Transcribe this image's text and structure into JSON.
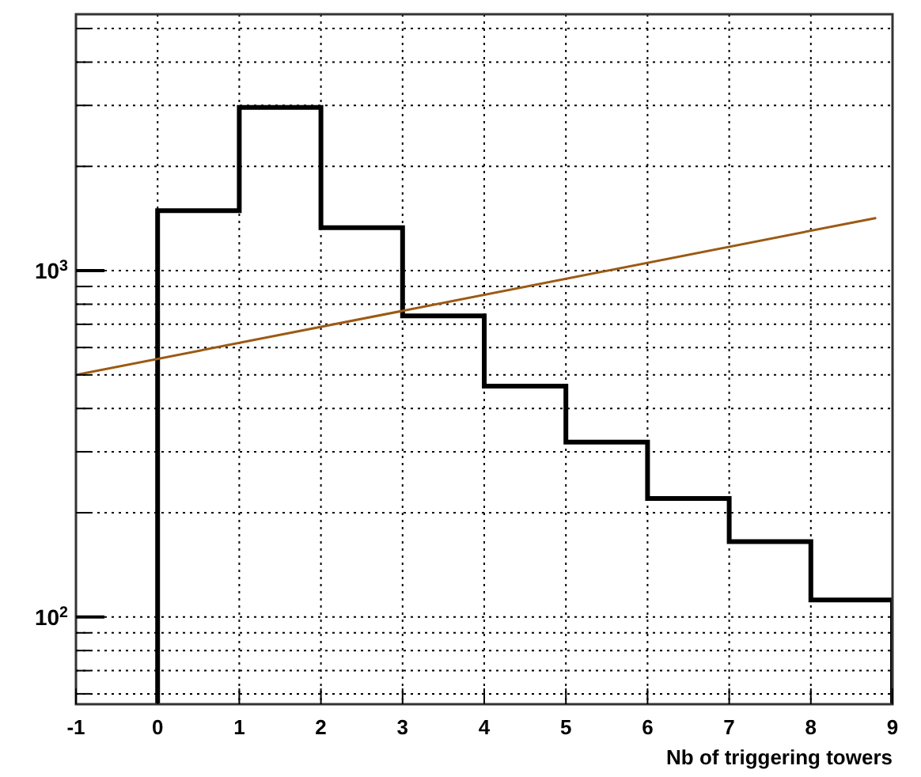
{
  "chart_data": {
    "type": "histogram",
    "xlabel": "Nb of triggering towers",
    "log": "y",
    "grid": true,
    "bins": [
      0,
      1,
      2,
      3,
      4,
      5,
      6,
      7,
      8,
      9
    ],
    "series": [
      {
        "color": "#000000",
        "values": [
          1490,
          2960,
          1330,
          740,
          464,
          320,
          220,
          165,
          112
        ]
      },
      {
        "type": "line",
        "color": "#9c5a14",
        "x": [
          -1,
          8.8
        ],
        "values": [
          500,
          1420
        ],
        "marker": "none",
        "line_style": "solid"
      }
    ],
    "xlim": [
      -1,
      9
    ],
    "ylim": [
      56,
      5500
    ],
    "xticks": [
      -1,
      0,
      1,
      2,
      3,
      4,
      5,
      6,
      7,
      8,
      9
    ],
    "yticks": [
      {
        "value": 60,
        "label": null
      },
      {
        "value": 70,
        "label": null
      },
      {
        "value": 80,
        "label": null
      },
      {
        "value": 90,
        "label": null
      },
      {
        "value": 100,
        "label": "10$^{2}$"
      },
      {
        "value": 200,
        "label": null
      },
      {
        "value": 300,
        "label": null
      },
      {
        "value": 400,
        "label": null
      },
      {
        "value": 500,
        "label": null
      },
      {
        "value": 600,
        "label": null
      },
      {
        "value": 700,
        "label": null
      },
      {
        "value": 800,
        "label": null
      },
      {
        "value": 900,
        "label": null
      },
      {
        "value": 1000,
        "label": "10$^{3}$"
      },
      {
        "value": 2000,
        "label": null
      },
      {
        "value": 3000,
        "label": null
      },
      {
        "value": 4000,
        "label": null
      },
      {
        "value": 5000,
        "label": null
      }
    ]
  }
}
